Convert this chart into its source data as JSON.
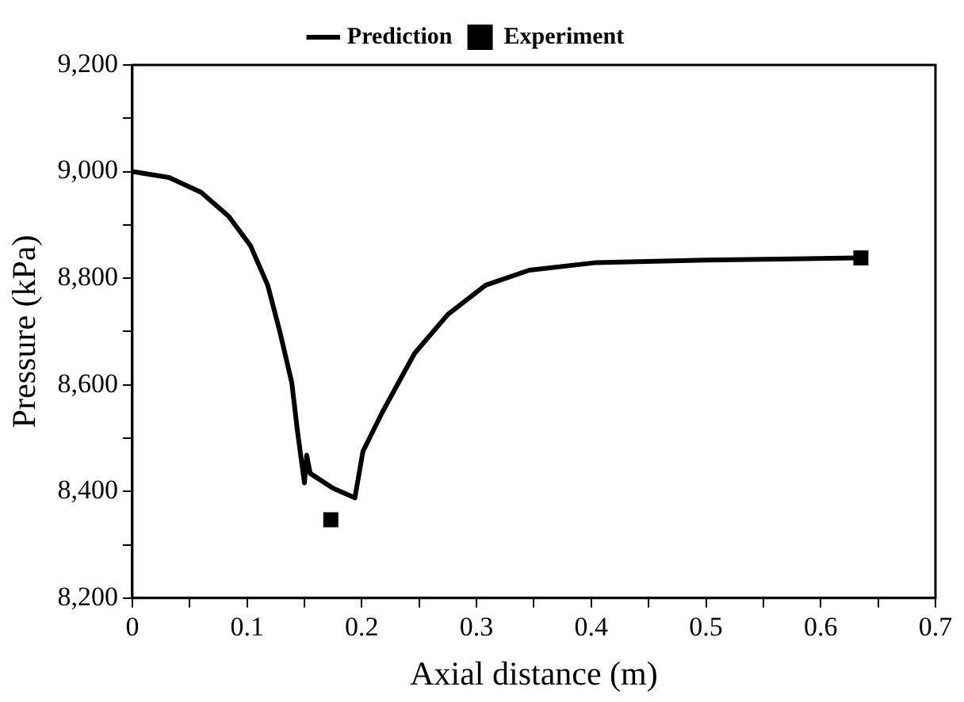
{
  "chart_data": {
    "type": "line",
    "xlabel": "Axial distance (m)",
    "ylabel": "Pressure (kPa)",
    "legend": "top",
    "grid": false,
    "xlim": [
      0,
      0.7
    ],
    "xticks": [
      0,
      {
        "value": 0.05,
        "label": null
      },
      0.1,
      {
        "value": 0.15,
        "label": null
      },
      0.2,
      {
        "value": 0.25,
        "label": null
      },
      0.3,
      {
        "value": 0.35,
        "label": null
      },
      0.4,
      {
        "value": 0.45,
        "label": null
      },
      0.5,
      {
        "value": 0.55,
        "label": null
      },
      0.6,
      {
        "value": 0.65,
        "label": null
      },
      0.7
    ],
    "ylim": [
      8200,
      9200
    ],
    "yticks": [
      {
        "value": 8200,
        "label": "8,200"
      },
      {
        "value": 8300,
        "label": null
      },
      {
        "value": 8400,
        "label": "8,400"
      },
      {
        "value": 8500,
        "label": null
      },
      {
        "value": 8600,
        "label": "8,600"
      },
      {
        "value": 8700,
        "label": null
      },
      {
        "value": 8800,
        "label": "8,800"
      },
      {
        "value": 8900,
        "label": null
      },
      {
        "value": 9000,
        "label": "9,000"
      },
      {
        "value": 9100,
        "label": null
      },
      {
        "value": 9200,
        "label": "9,200"
      }
    ],
    "series": [
      {
        "name": "Prediction",
        "color": "#000000",
        "marker": "none",
        "line_style": "solid",
        "x": [
          0,
          0.032,
          0.06,
          0.084,
          0.103,
          0.118,
          0.129,
          0.139,
          0.144,
          0.15,
          0.152,
          0.155,
          0.175,
          0.194,
          0.201,
          0.218,
          0.246,
          0.275,
          0.308,
          0.346,
          0.403,
          0.5,
          0.63
        ],
        "values": [
          9000,
          8989,
          8961,
          8916,
          8861,
          8787,
          8696,
          8604,
          8512,
          8416,
          8468,
          8434,
          8406,
          8388,
          8475,
          8549,
          8659,
          8732,
          8787,
          8815,
          8829,
          8834,
          8838
        ]
      },
      {
        "name": "Experiment",
        "type": "scatter",
        "color": "#000000",
        "marker": "square",
        "x": [
          0.173,
          0.635
        ],
        "values": [
          8347,
          8838
        ]
      }
    ]
  }
}
